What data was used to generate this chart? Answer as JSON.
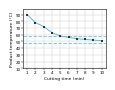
{
  "title": "",
  "xlabel": "Cutting time (min)",
  "ylabel": "Product temperature (°C)",
  "x_data": [
    1,
    2,
    3,
    4,
    5,
    6,
    7,
    8,
    9,
    10
  ],
  "y_data": [
    90,
    78,
    72,
    63,
    58,
    56,
    54,
    53,
    52,
    51
  ],
  "marker_color": "#333333",
  "line_color": "#55bbdd",
  "hline1": 58,
  "hline2": 47,
  "hline_color": "#55ccdd",
  "ylim": [
    10,
    98
  ],
  "xlim": [
    0.5,
    10.5
  ],
  "yticks": [
    10,
    20,
    30,
    40,
    50,
    60,
    70,
    80,
    90
  ],
  "xticks": [
    1,
    2,
    3,
    4,
    5,
    6,
    7,
    8,
    9,
    10
  ],
  "grid_color": "#c8c8c8",
  "bg_color": "#ffffff",
  "tick_fontsize": 3.0,
  "label_fontsize": 3.2
}
